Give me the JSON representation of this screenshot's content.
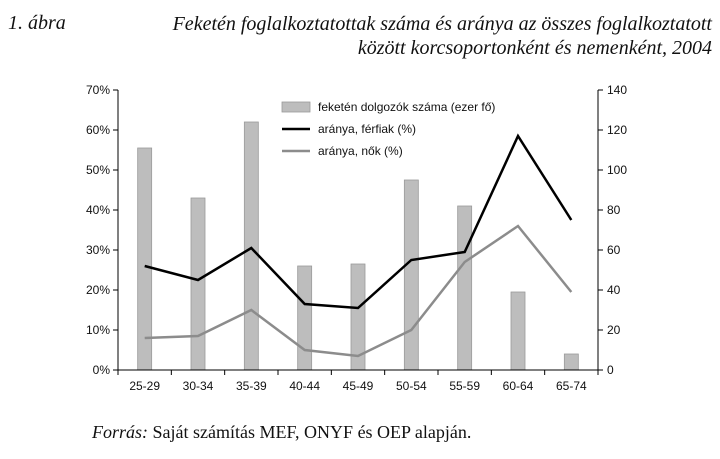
{
  "figure_label": "1. ábra",
  "title_lines": [
    "Feketén foglalkoztatottak száma és aránya az összes foglalkoztatott",
    "között korcsoportonként és nemenként, 2004"
  ],
  "source": {
    "label": "Forrás:",
    "text": "Saját számítás MEF, ONYF és OEP alapján."
  },
  "colors": {
    "bar": "#bdbdbd",
    "bar_stroke": "#9a9a9a",
    "line_men": "#000000",
    "line_women": "#8c8c8c",
    "axis": "#000000"
  },
  "chart_data": {
    "type": "bar",
    "categories": [
      "25-29",
      "30-34",
      "35-39",
      "40-44",
      "45-49",
      "50-54",
      "55-59",
      "60-64",
      "65-74"
    ],
    "y_left": {
      "ylim": [
        0,
        70
      ],
      "ticks": [
        0,
        10,
        20,
        30,
        40,
        50,
        60,
        70
      ],
      "tick_labels": [
        "0%",
        "10%",
        "20%",
        "30%",
        "40%",
        "50%",
        "60%",
        "70%"
      ]
    },
    "y_right": {
      "ylim": [
        0,
        140
      ],
      "ticks": [
        0,
        20,
        40,
        60,
        80,
        100,
        120,
        140
      ],
      "tick_labels": [
        "0",
        "20",
        "40",
        "60",
        "80",
        "100",
        "120",
        "140"
      ]
    },
    "grid": false,
    "legend_position": "top-right",
    "series": [
      {
        "name": "feketén dolgozók száma (ezer fő)",
        "type": "bar",
        "axis": "right",
        "values": [
          111,
          86,
          124,
          52,
          53,
          95,
          82,
          39,
          8
        ]
      },
      {
        "name": "aránya, férfiak (%)",
        "type": "line",
        "axis": "left",
        "values": [
          26,
          22.5,
          30.5,
          16.5,
          15.5,
          27.5,
          29.5,
          58.5,
          37.5
        ]
      },
      {
        "name": "aránya, nők (%)",
        "type": "line",
        "axis": "left",
        "values": [
          8,
          8.5,
          15,
          5,
          3.5,
          10,
          27,
          36,
          19.5
        ]
      }
    ]
  }
}
